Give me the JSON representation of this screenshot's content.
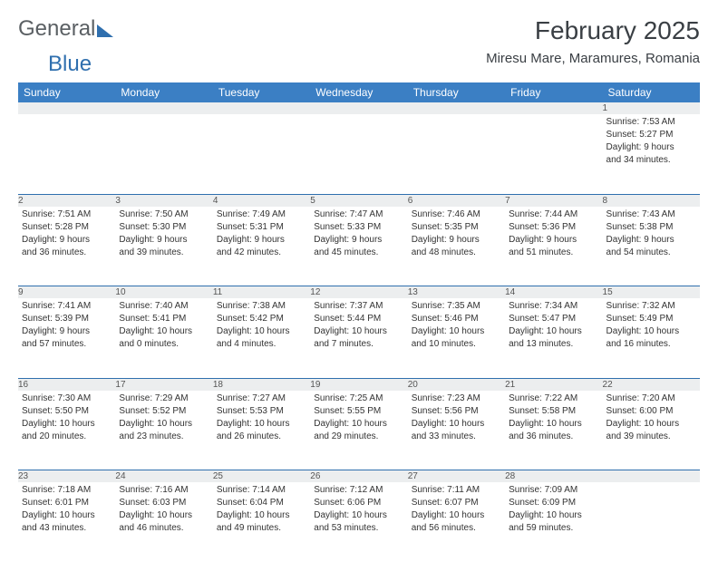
{
  "brand": {
    "part1": "General",
    "part2": "Blue"
  },
  "title": "February 2025",
  "location": "Miresu Mare, Maramures, Romania",
  "colors": {
    "header_bg": "#3b7fc4",
    "header_text": "#ffffff",
    "daynum_bg": "#eceeef",
    "rule": "#2f6fae",
    "body_text": "#333333",
    "page_bg": "#ffffff"
  },
  "weekdays": [
    "Sunday",
    "Monday",
    "Tuesday",
    "Wednesday",
    "Thursday",
    "Friday",
    "Saturday"
  ],
  "weeks": [
    [
      null,
      null,
      null,
      null,
      null,
      null,
      {
        "n": "1",
        "sr": "Sunrise: 7:53 AM",
        "ss": "Sunset: 5:27 PM",
        "d1": "Daylight: 9 hours",
        "d2": "and 34 minutes."
      }
    ],
    [
      {
        "n": "2",
        "sr": "Sunrise: 7:51 AM",
        "ss": "Sunset: 5:28 PM",
        "d1": "Daylight: 9 hours",
        "d2": "and 36 minutes."
      },
      {
        "n": "3",
        "sr": "Sunrise: 7:50 AM",
        "ss": "Sunset: 5:30 PM",
        "d1": "Daylight: 9 hours",
        "d2": "and 39 minutes."
      },
      {
        "n": "4",
        "sr": "Sunrise: 7:49 AM",
        "ss": "Sunset: 5:31 PM",
        "d1": "Daylight: 9 hours",
        "d2": "and 42 minutes."
      },
      {
        "n": "5",
        "sr": "Sunrise: 7:47 AM",
        "ss": "Sunset: 5:33 PM",
        "d1": "Daylight: 9 hours",
        "d2": "and 45 minutes."
      },
      {
        "n": "6",
        "sr": "Sunrise: 7:46 AM",
        "ss": "Sunset: 5:35 PM",
        "d1": "Daylight: 9 hours",
        "d2": "and 48 minutes."
      },
      {
        "n": "7",
        "sr": "Sunrise: 7:44 AM",
        "ss": "Sunset: 5:36 PM",
        "d1": "Daylight: 9 hours",
        "d2": "and 51 minutes."
      },
      {
        "n": "8",
        "sr": "Sunrise: 7:43 AM",
        "ss": "Sunset: 5:38 PM",
        "d1": "Daylight: 9 hours",
        "d2": "and 54 minutes."
      }
    ],
    [
      {
        "n": "9",
        "sr": "Sunrise: 7:41 AM",
        "ss": "Sunset: 5:39 PM",
        "d1": "Daylight: 9 hours",
        "d2": "and 57 minutes."
      },
      {
        "n": "10",
        "sr": "Sunrise: 7:40 AM",
        "ss": "Sunset: 5:41 PM",
        "d1": "Daylight: 10 hours",
        "d2": "and 0 minutes."
      },
      {
        "n": "11",
        "sr": "Sunrise: 7:38 AM",
        "ss": "Sunset: 5:42 PM",
        "d1": "Daylight: 10 hours",
        "d2": "and 4 minutes."
      },
      {
        "n": "12",
        "sr": "Sunrise: 7:37 AM",
        "ss": "Sunset: 5:44 PM",
        "d1": "Daylight: 10 hours",
        "d2": "and 7 minutes."
      },
      {
        "n": "13",
        "sr": "Sunrise: 7:35 AM",
        "ss": "Sunset: 5:46 PM",
        "d1": "Daylight: 10 hours",
        "d2": "and 10 minutes."
      },
      {
        "n": "14",
        "sr": "Sunrise: 7:34 AM",
        "ss": "Sunset: 5:47 PM",
        "d1": "Daylight: 10 hours",
        "d2": "and 13 minutes."
      },
      {
        "n": "15",
        "sr": "Sunrise: 7:32 AM",
        "ss": "Sunset: 5:49 PM",
        "d1": "Daylight: 10 hours",
        "d2": "and 16 minutes."
      }
    ],
    [
      {
        "n": "16",
        "sr": "Sunrise: 7:30 AM",
        "ss": "Sunset: 5:50 PM",
        "d1": "Daylight: 10 hours",
        "d2": "and 20 minutes."
      },
      {
        "n": "17",
        "sr": "Sunrise: 7:29 AM",
        "ss": "Sunset: 5:52 PM",
        "d1": "Daylight: 10 hours",
        "d2": "and 23 minutes."
      },
      {
        "n": "18",
        "sr": "Sunrise: 7:27 AM",
        "ss": "Sunset: 5:53 PM",
        "d1": "Daylight: 10 hours",
        "d2": "and 26 minutes."
      },
      {
        "n": "19",
        "sr": "Sunrise: 7:25 AM",
        "ss": "Sunset: 5:55 PM",
        "d1": "Daylight: 10 hours",
        "d2": "and 29 minutes."
      },
      {
        "n": "20",
        "sr": "Sunrise: 7:23 AM",
        "ss": "Sunset: 5:56 PM",
        "d1": "Daylight: 10 hours",
        "d2": "and 33 minutes."
      },
      {
        "n": "21",
        "sr": "Sunrise: 7:22 AM",
        "ss": "Sunset: 5:58 PM",
        "d1": "Daylight: 10 hours",
        "d2": "and 36 minutes."
      },
      {
        "n": "22",
        "sr": "Sunrise: 7:20 AM",
        "ss": "Sunset: 6:00 PM",
        "d1": "Daylight: 10 hours",
        "d2": "and 39 minutes."
      }
    ],
    [
      {
        "n": "23",
        "sr": "Sunrise: 7:18 AM",
        "ss": "Sunset: 6:01 PM",
        "d1": "Daylight: 10 hours",
        "d2": "and 43 minutes."
      },
      {
        "n": "24",
        "sr": "Sunrise: 7:16 AM",
        "ss": "Sunset: 6:03 PM",
        "d1": "Daylight: 10 hours",
        "d2": "and 46 minutes."
      },
      {
        "n": "25",
        "sr": "Sunrise: 7:14 AM",
        "ss": "Sunset: 6:04 PM",
        "d1": "Daylight: 10 hours",
        "d2": "and 49 minutes."
      },
      {
        "n": "26",
        "sr": "Sunrise: 7:12 AM",
        "ss": "Sunset: 6:06 PM",
        "d1": "Daylight: 10 hours",
        "d2": "and 53 minutes."
      },
      {
        "n": "27",
        "sr": "Sunrise: 7:11 AM",
        "ss": "Sunset: 6:07 PM",
        "d1": "Daylight: 10 hours",
        "d2": "and 56 minutes."
      },
      {
        "n": "28",
        "sr": "Sunrise: 7:09 AM",
        "ss": "Sunset: 6:09 PM",
        "d1": "Daylight: 10 hours",
        "d2": "and 59 minutes."
      },
      null
    ]
  ]
}
